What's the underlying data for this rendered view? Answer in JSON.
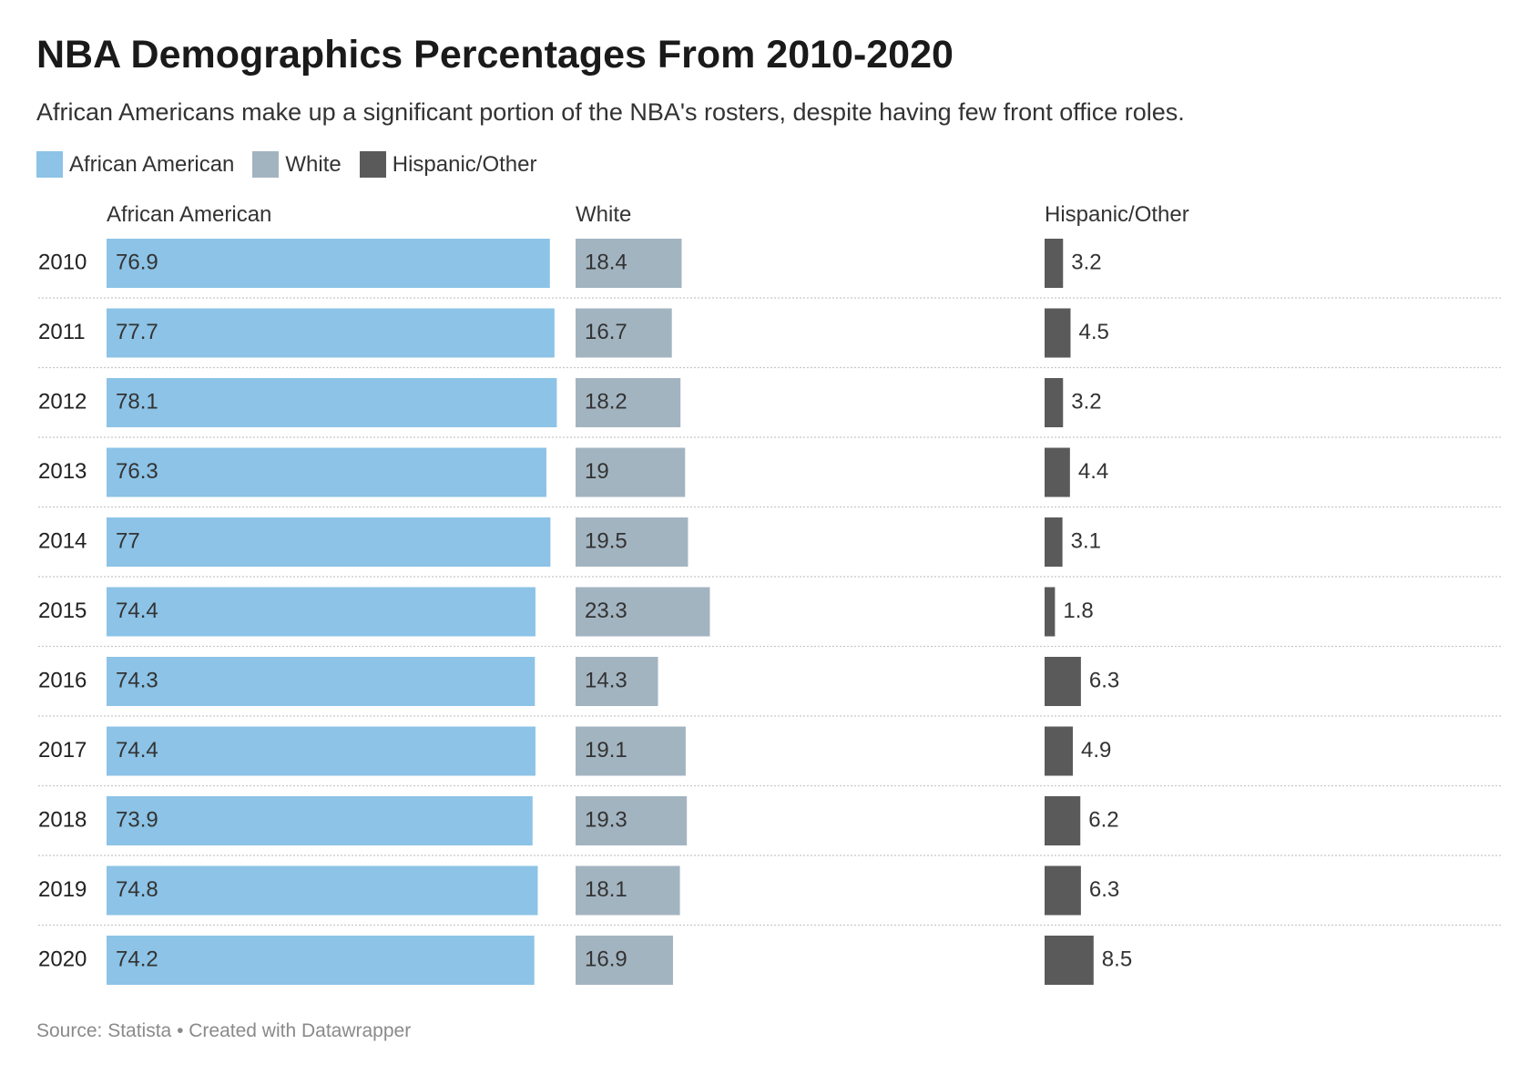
{
  "chart_data": {
    "type": "bar",
    "title": "NBA Demographics Percentages From 2010-2020",
    "subtitle": "African Americans make up a significant portion of the NBA's rosters, despite having few front office roles.",
    "source": "Source: Statista • Created with Datawrapper",
    "legend_position": "top-left",
    "categories": [
      "2010",
      "2011",
      "2012",
      "2013",
      "2014",
      "2015",
      "2016",
      "2017",
      "2018",
      "2019",
      "2020"
    ],
    "series": [
      {
        "name": "African American",
        "color": "#8cc3e6",
        "values": [
          76.9,
          77.7,
          78.1,
          76.3,
          77,
          74.4,
          74.3,
          74.4,
          73.9,
          74.8,
          74.2
        ]
      },
      {
        "name": "White",
        "color": "#a3b4c1",
        "values": [
          18.4,
          16.7,
          18.2,
          19,
          19.5,
          23.3,
          14.3,
          19.1,
          19.3,
          18.1,
          16.9
        ]
      },
      {
        "name": "Hispanic/Other",
        "color": "#5a5a5a",
        "values": [
          3.2,
          4.5,
          3.2,
          4.4,
          3.1,
          1.8,
          6.3,
          4.9,
          6.2,
          6.3,
          8.5
        ]
      }
    ]
  }
}
